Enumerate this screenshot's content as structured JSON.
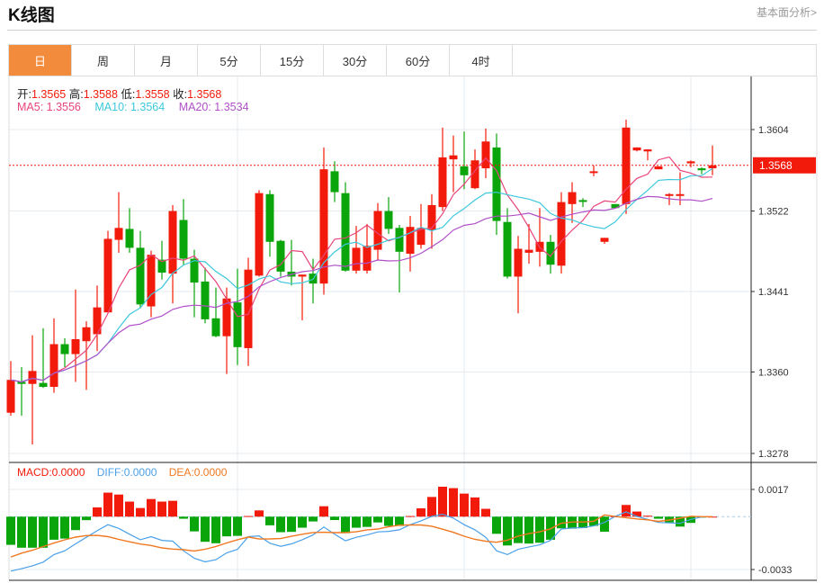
{
  "header": {
    "title": "K线图",
    "more_link": "基本面分析>"
  },
  "tabs": [
    {
      "label": "日",
      "active": true
    },
    {
      "label": "周"
    },
    {
      "label": "月"
    },
    {
      "label": "5分"
    },
    {
      "label": "15分"
    },
    {
      "label": "30分"
    },
    {
      "label": "60分"
    },
    {
      "label": "4时"
    }
  ],
  "ohlc_info": {
    "open_label": "开:",
    "open": "1.3565",
    "high_label": "高:",
    "high": "1.3588",
    "low_label": "低:",
    "low": "1.3558",
    "close_label": "收:",
    "close": "1.3568"
  },
  "ma_info": {
    "ma5": "MA5: 1.3556",
    "ma10": "MA10: 1.3564",
    "ma20": "MA20: 1.3534"
  },
  "macd_info": {
    "macd": "MACD:0.0000",
    "diff": "DIFF:0.0000",
    "dea": "DEA:0.0000"
  },
  "colors": {
    "up": "#f21a0a",
    "down": "#0aa50a",
    "ma5": "#e8457a",
    "ma10": "#3cc8dc",
    "ma20": "#b050c8",
    "diff": "#4aa0e8",
    "dea": "#f07820",
    "active_tab": "#f28c3c"
  },
  "chart_data": [
    {
      "type": "candlestick",
      "yticks": [
        "1.3604",
        "1.3522",
        "1.3441",
        "1.3360",
        "1.3278"
      ],
      "ylim": [
        1.3278,
        1.3604
      ],
      "last_price_label": "1.3568",
      "last_price": 1.3568,
      "grid": true,
      "series_note_names": [
        "MA5",
        "MA10",
        "MA20"
      ],
      "ohlc": [
        [
          1.3319,
          1.3371,
          1.3316,
          1.3352
        ],
        [
          1.335,
          1.3365,
          1.3316,
          1.3348
        ],
        [
          1.3348,
          1.3397,
          1.3287,
          1.3361
        ],
        [
          1.3349,
          1.3404,
          1.3344,
          1.3345
        ],
        [
          1.3345,
          1.3414,
          1.3339,
          1.3388
        ],
        [
          1.3388,
          1.3394,
          1.3365,
          1.3378
        ],
        [
          1.3378,
          1.3443,
          1.335,
          1.3393
        ],
        [
          1.3391,
          1.3411,
          1.3342,
          1.3405
        ],
        [
          1.3398,
          1.3447,
          1.3381,
          1.3425
        ],
        [
          1.342,
          1.3502,
          1.342,
          1.3494
        ],
        [
          1.3493,
          1.3541,
          1.348,
          1.3505
        ],
        [
          1.3504,
          1.3525,
          1.348,
          1.3485
        ],
        [
          1.3485,
          1.3502,
          1.3424,
          1.3428
        ],
        [
          1.3426,
          1.3482,
          1.3415,
          1.3478
        ],
        [
          1.3473,
          1.3492,
          1.3453,
          1.346
        ],
        [
          1.3459,
          1.3528,
          1.3429,
          1.3522
        ],
        [
          1.3513,
          1.3534,
          1.3468,
          1.3474
        ],
        [
          1.3474,
          1.3483,
          1.3415,
          1.345
        ],
        [
          1.3451,
          1.3465,
          1.3409,
          1.3413
        ],
        [
          1.3414,
          1.3445,
          1.3395,
          1.3396
        ],
        [
          1.3396,
          1.3445,
          1.3358,
          1.3434
        ],
        [
          1.343,
          1.3464,
          1.3367,
          1.3385
        ],
        [
          1.3384,
          1.3475,
          1.3366,
          1.3463
        ],
        [
          1.3457,
          1.3543,
          1.3456,
          1.354
        ],
        [
          1.3539,
          1.3543,
          1.3476,
          1.3491
        ],
        [
          1.3492,
          1.3493,
          1.3456,
          1.3461
        ],
        [
          1.3461,
          1.3493,
          1.3447,
          1.3456
        ],
        [
          1.3456,
          1.3458,
          1.3412,
          1.3458
        ],
        [
          1.3459,
          1.3474,
          1.3429,
          1.3449
        ],
        [
          1.3449,
          1.3586,
          1.3438,
          1.3564
        ],
        [
          1.3562,
          1.3572,
          1.3531,
          1.3541
        ],
        [
          1.354,
          1.3551,
          1.3461,
          1.3462
        ],
        [
          1.3462,
          1.3507,
          1.3459,
          1.3485
        ],
        [
          1.3462,
          1.3509,
          1.3459,
          1.3487
        ],
        [
          1.3483,
          1.353,
          1.3472,
          1.3522
        ],
        [
          1.3522,
          1.3536,
          1.3499,
          1.3504
        ],
        [
          1.3505,
          1.3508,
          1.344,
          1.3481
        ],
        [
          1.3479,
          1.3517,
          1.3461,
          1.3506
        ],
        [
          1.3488,
          1.3529,
          1.3484,
          1.3505
        ],
        [
          1.3503,
          1.3539,
          1.3484,
          1.3528
        ],
        [
          1.3526,
          1.3606,
          1.3522,
          1.3576
        ],
        [
          1.3574,
          1.3598,
          1.3541,
          1.3578
        ],
        [
          1.3567,
          1.3602,
          1.3544,
          1.3558
        ],
        [
          1.3545,
          1.3584,
          1.3544,
          1.3573
        ],
        [
          1.3565,
          1.3605,
          1.3555,
          1.3592
        ],
        [
          1.3586,
          1.36,
          1.3498,
          1.3512
        ],
        [
          1.3511,
          1.3525,
          1.3454,
          1.3456
        ],
        [
          1.3456,
          1.3497,
          1.3419,
          1.3484
        ],
        [
          1.348,
          1.3509,
          1.3469,
          1.3483
        ],
        [
          1.3481,
          1.3525,
          1.3466,
          1.3491
        ],
        [
          1.3491,
          1.3498,
          1.3459,
          1.3468
        ],
        [
          1.3467,
          1.3541,
          1.3459,
          1.3531
        ],
        [
          1.3529,
          1.3551,
          1.351,
          1.3541
        ],
        [
          1.3533,
          1.3535,
          1.3526,
          1.3532
        ],
        [
          1.3561,
          1.3568,
          1.3557,
          1.3562
        ],
        [
          1.3491,
          1.3495,
          1.3489,
          1.3495
        ],
        [
          1.3529,
          1.3529,
          1.3525,
          1.3525
        ],
        [
          1.3529,
          1.3614,
          1.3519,
          1.3606
        ],
        [
          1.3583,
          1.3586,
          1.3582,
          1.3586
        ],
        [
          1.3582,
          1.3584,
          1.3573,
          1.3584
        ],
        [
          1.3564,
          1.3567,
          1.3564,
          1.3567
        ],
        [
          1.3538,
          1.354,
          1.3528,
          1.3539
        ],
        [
          1.3538,
          1.3561,
          1.3528,
          1.3539
        ],
        [
          1.357,
          1.3573,
          1.3566,
          1.3572
        ],
        [
          1.3565,
          1.3566,
          1.3559,
          1.3563
        ],
        [
          1.3565,
          1.3588,
          1.3558,
          1.3568
        ]
      ]
    },
    {
      "type": "macd",
      "yticks": [
        "0.0017",
        "-0.0033"
      ],
      "ylim": [
        -0.0033,
        0.0017
      ],
      "macd": [
        -0.00176,
        -0.00194,
        -0.00194,
        -0.00194,
        -0.00144,
        -0.00137,
        -0.00084,
        -0.00022,
        0.00058,
        0.0015,
        0.00138,
        0.00094,
        0.00054,
        0.0011,
        0.00094,
        0.00099,
        -0.00013,
        -0.00092,
        -0.00157,
        -0.00166,
        -0.00123,
        -0.0012,
        4e-05,
        0.00039,
        -0.00054,
        -0.00097,
        -0.00095,
        -0.00069,
        -0.0003,
        0.00065,
        -0.00021,
        -0.00103,
        -0.00069,
        -0.00064,
        -0.00036,
        -0.00058,
        -0.00058,
        4e-05,
        0.00052,
        0.00123,
        0.00187,
        0.00178,
        0.00144,
        0.0012,
        0.00049,
        -0.00107,
        -0.0018,
        -0.00165,
        -0.00168,
        -0.00163,
        -0.00144,
        -0.00073,
        -0.00075,
        -0.00071,
        -0.00058,
        -0.00094,
        2e-05,
        0.00073,
        0.00032,
        6e-05,
        -0.00013,
        -0.00036,
        -0.00062,
        -0.00039,
        -4e-05,
        0
      ],
      "diff": [
        -0.0034,
        -0.00325,
        -0.00307,
        -0.00284,
        -0.00237,
        -0.00213,
        -0.0017,
        -0.00129,
        -0.00088,
        -0.0005,
        -0.00073,
        -0.0011,
        -0.00144,
        -0.00125,
        -0.00148,
        -0.00153,
        -0.00213,
        -0.0026,
        -0.00282,
        -0.00269,
        -0.00226,
        -0.00204,
        -0.00125,
        -0.0012,
        -0.00166,
        -0.00185,
        -0.0017,
        -0.00144,
        -0.00114,
        -0.00065,
        -0.0011,
        -0.00151,
        -0.00129,
        -0.00114,
        -0.00095,
        -0.00092,
        -0.00082,
        -0.0005,
        -0.00026,
        2e-05,
        0.00015,
        -9e-05,
        -0.0005,
        -0.00082,
        -0.00129,
        -0.00213,
        -0.00237,
        -0.00204,
        -0.00189,
        -0.00176,
        -0.00148,
        -0.00077,
        -0.00071,
        -0.00069,
        -0.00058,
        -0.00036,
        2e-05,
        0.0003,
        2e-05,
        -0.00017,
        -0.00036,
        -0.00039,
        -0.00041,
        -0.00017,
        -2e-05,
        0
      ]
    }
  ]
}
